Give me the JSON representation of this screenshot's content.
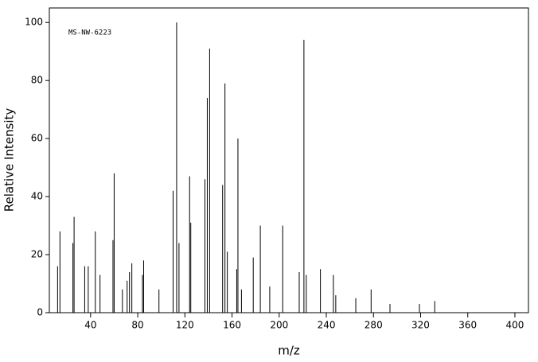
{
  "chart_data": {
    "type": "stick",
    "annotation": "MS-NW-6223",
    "x_label": "m/z",
    "y_label": "Relative Intensity",
    "xlim": [
      5,
      411.5
    ],
    "ylim": [
      0,
      105
    ],
    "xticks": [
      40,
      80,
      120,
      160,
      200,
      240,
      280,
      320,
      360,
      400
    ],
    "yticks": [
      0,
      20,
      40,
      60,
      80,
      100
    ],
    "color": "#000000",
    "x": [
      12,
      14,
      25,
      26,
      35,
      38,
      44,
      48,
      59,
      60,
      67,
      71,
      73,
      75,
      84,
      85,
      98,
      110,
      113,
      115,
      124,
      125,
      137,
      139,
      141,
      152,
      154,
      156,
      164,
      165,
      168,
      178,
      184,
      192,
      203,
      217,
      221,
      223,
      235,
      246,
      248,
      265,
      278,
      294,
      319,
      332
    ],
    "values": [
      16,
      28,
      24,
      33,
      16,
      16,
      28,
      13,
      25,
      48,
      8,
      11,
      14,
      17,
      13,
      18,
      8,
      42,
      100,
      24,
      47,
      31,
      46,
      74,
      91,
      44,
      79,
      21,
      15,
      60,
      8,
      19,
      30,
      9,
      30,
      14,
      94,
      13,
      15,
      13,
      6,
      5,
      8,
      3,
      3,
      4
    ]
  }
}
